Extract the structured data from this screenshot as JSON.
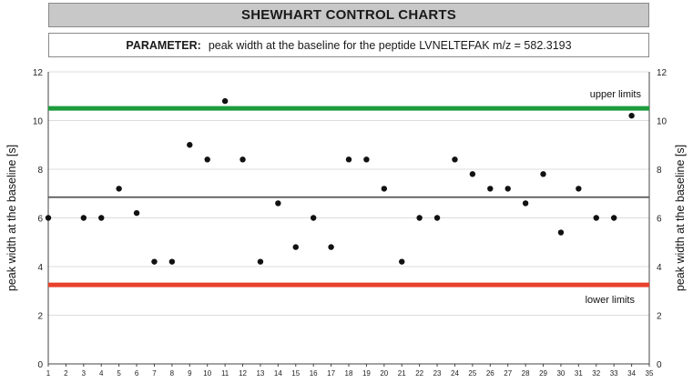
{
  "header": {
    "title": "SHEWHART CONTROL CHARTS",
    "parameter_label": "PARAMETER:",
    "parameter_text": "peak width at the baseline for the peptide LVNELTEFAK m/z = 582.3193"
  },
  "chart_data": {
    "type": "scatter",
    "ylabel_left": "peak width at the baseline [s]",
    "ylabel_right": "peak width at the baseline [s]",
    "xlim": [
      1,
      35
    ],
    "ylim": [
      0,
      12
    ],
    "x_ticks": [
      1,
      2,
      3,
      4,
      5,
      6,
      7,
      8,
      9,
      10,
      11,
      12,
      13,
      14,
      15,
      16,
      17,
      18,
      19,
      20,
      21,
      22,
      23,
      24,
      25,
      26,
      27,
      28,
      29,
      30,
      31,
      32,
      33,
      34,
      35
    ],
    "y_ticks": [
      0,
      2,
      4,
      6,
      8,
      10,
      12
    ],
    "grid": true,
    "series": [
      {
        "points": [
          [
            1,
            6.0
          ],
          [
            3,
            6.0
          ],
          [
            4,
            6.0
          ],
          [
            5,
            7.2
          ],
          [
            6,
            6.2
          ],
          [
            7,
            4.2
          ],
          [
            8,
            4.2
          ],
          [
            9,
            9.0
          ],
          [
            10,
            8.4
          ],
          [
            11,
            10.8
          ],
          [
            12,
            8.4
          ],
          [
            13,
            4.2
          ],
          [
            14,
            6.6
          ],
          [
            15,
            4.8
          ],
          [
            16,
            6.0
          ],
          [
            17,
            4.8
          ],
          [
            18,
            8.4
          ],
          [
            19,
            8.4
          ],
          [
            20,
            7.2
          ],
          [
            21,
            4.2
          ],
          [
            22,
            6.0
          ],
          [
            23,
            6.0
          ],
          [
            24,
            8.4
          ],
          [
            25,
            7.8
          ],
          [
            26,
            7.2
          ],
          [
            27,
            7.2
          ],
          [
            28,
            6.6
          ],
          [
            29,
            7.8
          ],
          [
            30,
            5.4
          ],
          [
            31,
            7.2
          ],
          [
            32,
            6.0
          ],
          [
            33,
            6.0
          ],
          [
            34,
            10.2
          ]
        ]
      }
    ],
    "reference_lines": [
      {
        "name": "upper limits",
        "value": 10.5,
        "color": "#1e9b3c"
      },
      {
        "name": "",
        "value": 6.85,
        "color": "#555555"
      },
      {
        "name": "lower limits",
        "value": 3.25,
        "color": "#e8412c"
      }
    ],
    "annotations": {
      "upper": "upper limits",
      "lower": "lower limits"
    }
  }
}
